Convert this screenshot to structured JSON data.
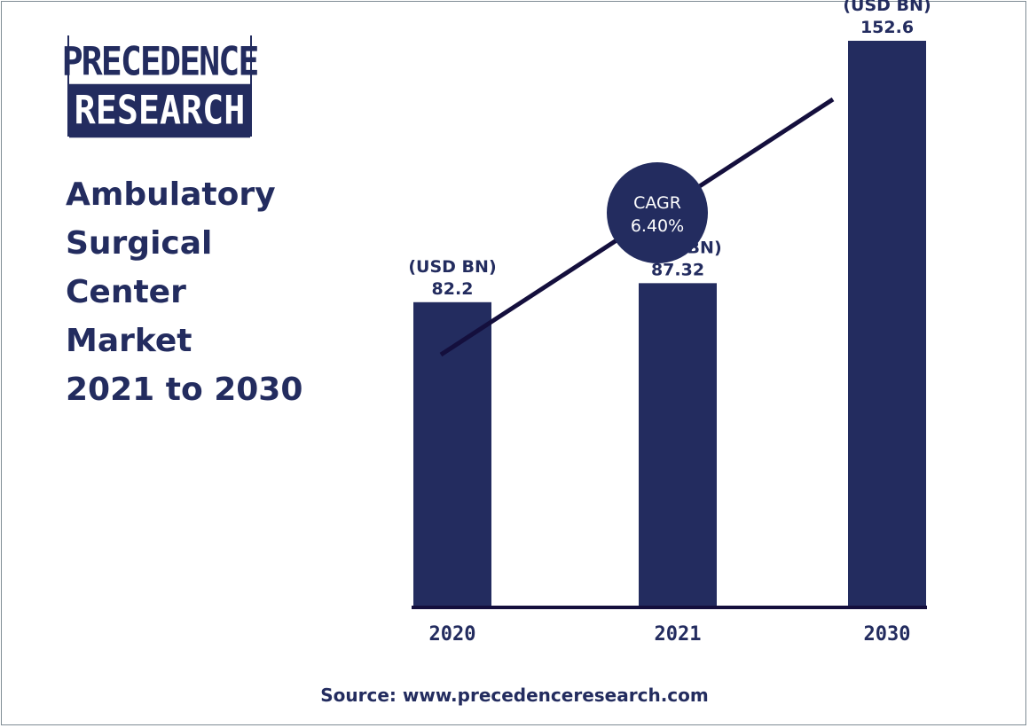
{
  "logo": {
    "line1": "PRECEDENCE",
    "line2": "RESEARCH"
  },
  "title_lines": [
    "Ambulatory",
    "Surgical",
    "Center",
    "Market",
    "2021 to 2030"
  ],
  "source": "Source: www.precedenceresearch.com",
  "colors": {
    "bar": "#232c5f",
    "text": "#232c5f",
    "trend": "#140f3d"
  },
  "chart_data": {
    "type": "bar",
    "categories": [
      "2020",
      "2021",
      "2030"
    ],
    "values": [
      82.2,
      87.32,
      152.6
    ],
    "value_labels": [
      "82.2",
      "87.32",
      "152.6"
    ],
    "unit_label": "(USD BN)",
    "annotation": {
      "line1": "CAGR",
      "line2": "6.40%"
    },
    "title": "Ambulatory Surgical Center Market 2021 to 2030",
    "xlabel": "",
    "ylabel": "",
    "ylim": [
      0,
      160
    ],
    "grid": false
  }
}
